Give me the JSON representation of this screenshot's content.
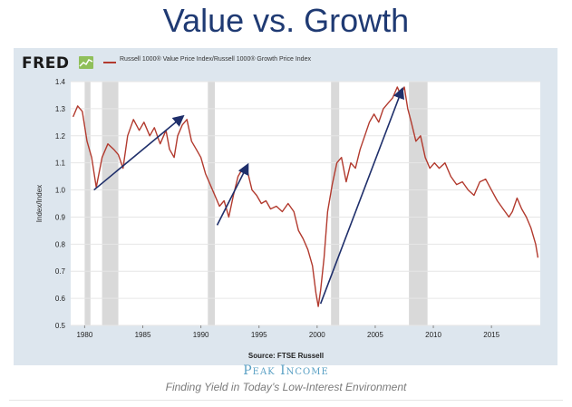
{
  "slide": {
    "title": "Value vs. Growth",
    "source": "Source: FTSE Russell",
    "brand": "Peak Income",
    "tagline": "Finding Yield in Today’s Low-Interest Environment"
  },
  "fred": {
    "logo": "FRED"
  },
  "colors": {
    "line": "#b23a2e",
    "trend": "#1f2f6b",
    "recession": "#d9d9d9",
    "title": "#1f3a73"
  },
  "chart_data": {
    "type": "line",
    "title": "",
    "xlabel": "",
    "ylabel": "Index/Index",
    "xlim": [
      1978.8,
      2019.2
    ],
    "ylim": [
      0.5,
      1.4
    ],
    "grid": true,
    "legend": {
      "position": "top-left",
      "label": "Russell 1000® Value Price Index/Russell 1000® Growth Price Index"
    },
    "x_ticks": [
      1980,
      1985,
      1990,
      1995,
      2000,
      2005,
      2010,
      2015
    ],
    "y_ticks": [
      0.5,
      0.6,
      0.7,
      0.8,
      0.9,
      1.0,
      1.1,
      1.2,
      1.3,
      1.4
    ],
    "y_tick_labels": [
      "0.5",
      "0.6",
      "0.7",
      "0.8",
      "0.9",
      "1.0",
      "1.1",
      "1.2",
      "1.3",
      "1.4"
    ],
    "recessions": [
      [
        1980.0,
        1980.5
      ],
      [
        1981.5,
        1982.9
      ],
      [
        1990.6,
        1991.2
      ],
      [
        2001.2,
        2001.9
      ],
      [
        2007.9,
        2009.5
      ]
    ],
    "series": [
      {
        "name": "Russell 1000® Value Price Index/Russell 1000® Growth Price Index",
        "x": [
          1979.0,
          1979.4,
          1979.8,
          1980.2,
          1980.6,
          1981.0,
          1981.5,
          1982.0,
          1982.5,
          1982.9,
          1983.3,
          1983.7,
          1984.2,
          1984.7,
          1985.1,
          1985.6,
          1986.0,
          1986.5,
          1987.0,
          1987.3,
          1987.7,
          1988.0,
          1988.4,
          1988.8,
          1989.2,
          1989.6,
          1990.0,
          1990.4,
          1990.8,
          1991.2,
          1991.6,
          1992.0,
          1992.4,
          1992.8,
          1993.2,
          1993.6,
          1994.0,
          1994.4,
          1994.8,
          1995.2,
          1995.6,
          1996.0,
          1996.5,
          1997.0,
          1997.5,
          1998.0,
          1998.4,
          1998.8,
          1999.2,
          1999.6,
          1999.9,
          2000.1,
          2000.3,
          2000.6,
          2000.9,
          2001.3,
          2001.7,
          2002.1,
          2002.5,
          2002.9,
          2003.3,
          2003.7,
          2004.1,
          2004.5,
          2004.9,
          2005.3,
          2005.7,
          2006.1,
          2006.5,
          2006.9,
          2007.2,
          2007.5,
          2007.8,
          2008.1,
          2008.5,
          2008.9,
          2009.3,
          2009.7,
          2010.1,
          2010.5,
          2011.0,
          2011.5,
          2012.0,
          2012.5,
          2013.0,
          2013.5,
          2014.0,
          2014.5,
          2015.0,
          2015.5,
          2016.0,
          2016.5,
          2016.8,
          2017.2,
          2017.6,
          2018.0,
          2018.4,
          2018.8,
          2019.0
        ],
        "y": [
          1.27,
          1.31,
          1.29,
          1.18,
          1.12,
          1.01,
          1.12,
          1.17,
          1.15,
          1.13,
          1.08,
          1.2,
          1.26,
          1.22,
          1.25,
          1.2,
          1.23,
          1.17,
          1.22,
          1.15,
          1.12,
          1.2,
          1.24,
          1.26,
          1.18,
          1.15,
          1.12,
          1.06,
          1.02,
          0.98,
          0.94,
          0.96,
          0.9,
          0.98,
          1.05,
          1.08,
          1.07,
          1.0,
          0.98,
          0.95,
          0.96,
          0.93,
          0.94,
          0.92,
          0.95,
          0.92,
          0.85,
          0.82,
          0.78,
          0.72,
          0.62,
          0.57,
          0.63,
          0.75,
          0.92,
          1.02,
          1.1,
          1.12,
          1.03,
          1.1,
          1.08,
          1.15,
          1.2,
          1.25,
          1.28,
          1.25,
          1.3,
          1.32,
          1.34,
          1.38,
          1.35,
          1.38,
          1.3,
          1.25,
          1.18,
          1.2,
          1.12,
          1.08,
          1.1,
          1.08,
          1.1,
          1.05,
          1.02,
          1.03,
          1.0,
          0.98,
          1.03,
          1.04,
          1.0,
          0.96,
          0.93,
          0.9,
          0.92,
          0.97,
          0.93,
          0.9,
          0.86,
          0.8,
          0.75
        ]
      }
    ],
    "trend_lines": [
      {
        "from": [
          1980.8,
          1.0
        ],
        "to": [
          1988.4,
          1.27
        ]
      },
      {
        "from": [
          1991.4,
          0.87
        ],
        "to": [
          1994.0,
          1.09
        ]
      },
      {
        "from": [
          2000.3,
          0.58
        ],
        "to": [
          2007.3,
          1.37
        ]
      }
    ]
  }
}
